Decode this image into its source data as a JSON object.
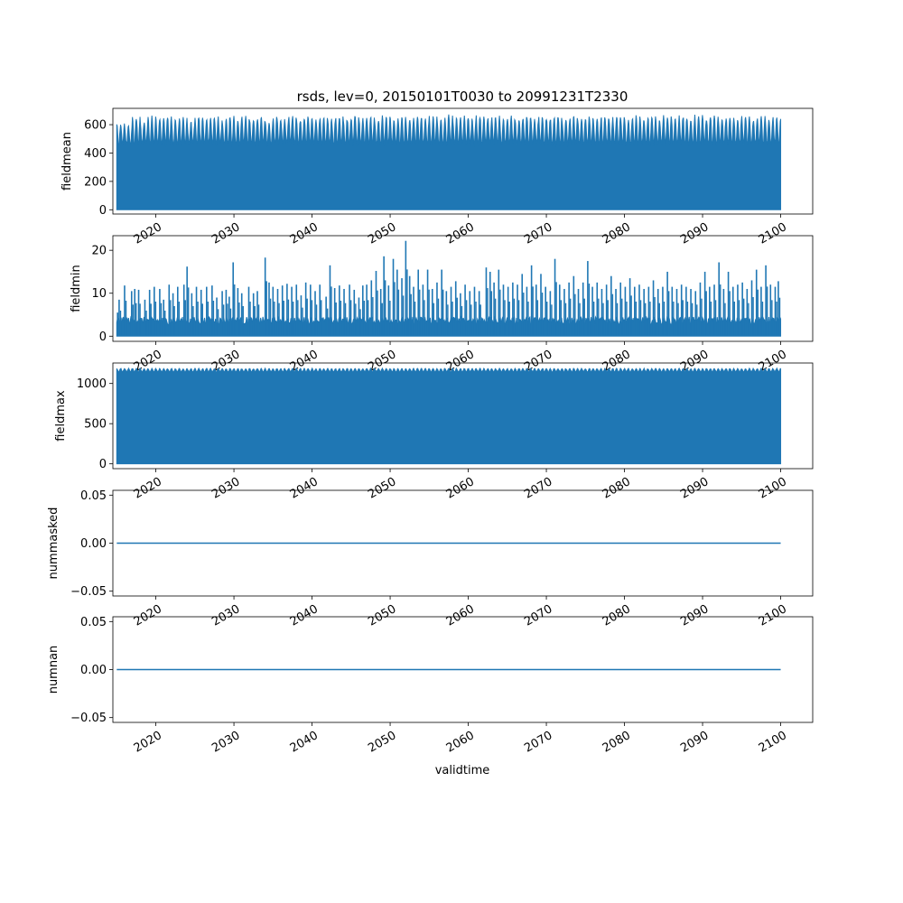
{
  "chart_data": [
    {
      "type": "line",
      "title": "rsds, lev=0, 20150101T0030 to 20991231T2330",
      "xlabel": "",
      "ylabel": "fieldmean",
      "xlim": [
        2014.5,
        2104.1
      ],
      "ylim": [
        -30,
        715
      ],
      "yticks": [
        0,
        200,
        400,
        600
      ],
      "xticks": [
        2020,
        2030,
        2040,
        2050,
        2060,
        2070,
        2080,
        2090,
        2100
      ],
      "series": [
        {
          "style": "dense-oscillation",
          "x_range": [
            2015.0,
            2100.0
          ],
          "cycles_per_year": 1,
          "min": 0,
          "envelope_peaks": [
            618,
            602,
            662,
            628,
            665,
            658,
            668,
            640,
            662,
            625,
            668,
            650,
            668,
            640,
            665,
            645,
            668,
            648,
            668,
            632,
            670,
            650,
            668,
            640,
            670,
            655,
            668,
            642,
            670,
            650,
            672,
            655,
            668,
            645,
            670,
            652,
            668,
            648,
            670,
            655,
            668,
            645,
            672,
            652,
            668,
            648,
            670,
            655,
            668,
            645,
            670,
            652,
            668,
            648,
            670,
            655,
            668,
            645,
            672,
            652,
            668,
            648,
            670,
            655,
            668,
            645,
            670,
            652,
            668,
            648,
            670,
            655,
            668,
            645,
            672,
            652,
            668,
            648,
            670,
            655,
            668,
            645,
            670,
            652,
            668,
            660
          ],
          "trough_max": 470
        }
      ]
    },
    {
      "type": "line",
      "xlabel": "",
      "ylabel": "fieldmin",
      "xlim": [
        2014.5,
        2104.1
      ],
      "ylim": [
        -1.2,
        23.4
      ],
      "yticks": [
        0,
        10,
        20
      ],
      "xticks": [
        2020,
        2030,
        2040,
        2050,
        2060,
        2070,
        2080,
        2090,
        2100
      ],
      "series": [
        {
          "style": "dense-oscillation",
          "x_range": [
            2015.0,
            2100.0
          ],
          "min": 0,
          "base_level": 4.5,
          "spikes": [
            [
              2015.1,
              5.5
            ],
            [
              2015.3,
              8.5
            ],
            [
              2016.0,
              11.8
            ],
            [
              2016.9,
              10.5
            ],
            [
              2017.3,
              11.0
            ],
            [
              2017.8,
              10.8
            ],
            [
              2018.6,
              8.5
            ],
            [
              2019.2,
              10.8
            ],
            [
              2019.8,
              11.5
            ],
            [
              2020.5,
              11.0
            ],
            [
              2021.0,
              8.5
            ],
            [
              2021.7,
              12.0
            ],
            [
              2022.2,
              10.0
            ],
            [
              2022.8,
              11.5
            ],
            [
              2023.6,
              12.0
            ],
            [
              2024.0,
              16.2
            ],
            [
              2024.6,
              10.0
            ],
            [
              2025.2,
              11.5
            ],
            [
              2025.8,
              10.8
            ],
            [
              2026.5,
              11.5
            ],
            [
              2027.2,
              11.8
            ],
            [
              2027.8,
              9.0
            ],
            [
              2028.5,
              10.5
            ],
            [
              2029.0,
              10.8
            ],
            [
              2029.4,
              9.2
            ],
            [
              2029.9,
              17.2
            ],
            [
              2030.5,
              11.2
            ],
            [
              2031.0,
              10.0
            ],
            [
              2031.9,
              11.5
            ],
            [
              2032.5,
              10.0
            ],
            [
              2033.0,
              10.5
            ],
            [
              2034.0,
              18.3
            ],
            [
              2034.5,
              12.5
            ],
            [
              2035.0,
              11.5
            ],
            [
              2035.6,
              11.0
            ],
            [
              2036.2,
              11.8
            ],
            [
              2036.8,
              12.2
            ],
            [
              2037.4,
              11.5
            ],
            [
              2038.0,
              12.0
            ],
            [
              2038.6,
              9.5
            ],
            [
              2039.2,
              12.5
            ],
            [
              2039.8,
              12.0
            ],
            [
              2040.4,
              10.5
            ],
            [
              2041.0,
              12.0
            ],
            [
              2041.8,
              9.2
            ],
            [
              2042.3,
              16.5
            ],
            [
              2042.9,
              11.2
            ],
            [
              2043.5,
              11.8
            ],
            [
              2044.1,
              11.0
            ],
            [
              2044.8,
              12.0
            ],
            [
              2045.4,
              10.8
            ],
            [
              2046.0,
              9.0
            ],
            [
              2046.5,
              11.8
            ],
            [
              2047.0,
              12.0
            ],
            [
              2047.6,
              13.0
            ],
            [
              2048.2,
              15.2
            ],
            [
              2048.8,
              11.0
            ],
            [
              2049.2,
              18.6
            ],
            [
              2049.8,
              11.8
            ],
            [
              2050.4,
              18.0
            ],
            [
              2050.9,
              15.5
            ],
            [
              2051.5,
              13.5
            ],
            [
              2052.0,
              22.2
            ],
            [
              2052.5,
              14.0
            ],
            [
              2053.0,
              11.5
            ],
            [
              2053.6,
              15.5
            ],
            [
              2054.2,
              12.0
            ],
            [
              2054.8,
              15.5
            ],
            [
              2055.4,
              11.0
            ],
            [
              2056.0,
              12.5
            ],
            [
              2056.6,
              15.5
            ],
            [
              2057.2,
              10.5
            ],
            [
              2057.8,
              11.5
            ],
            [
              2058.4,
              12.8
            ],
            [
              2059.0,
              10.0
            ],
            [
              2059.6,
              12.0
            ],
            [
              2060.2,
              10.5
            ],
            [
              2060.8,
              11.5
            ],
            [
              2061.4,
              10.5
            ],
            [
              2062.3,
              16.0
            ],
            [
              2062.8,
              15.0
            ],
            [
              2063.3,
              12.5
            ],
            [
              2063.9,
              15.5
            ],
            [
              2064.5,
              12.0
            ],
            [
              2065.1,
              11.5
            ],
            [
              2065.7,
              12.5
            ],
            [
              2066.3,
              12.0
            ],
            [
              2066.9,
              14.5
            ],
            [
              2067.5,
              11.5
            ],
            [
              2068.1,
              16.5
            ],
            [
              2068.7,
              12.0
            ],
            [
              2069.3,
              14.5
            ],
            [
              2069.9,
              11.5
            ],
            [
              2070.5,
              10.5
            ],
            [
              2071.1,
              18.0
            ],
            [
              2071.7,
              12.0
            ],
            [
              2072.3,
              11.0
            ],
            [
              2072.9,
              12.5
            ],
            [
              2073.5,
              14.0
            ],
            [
              2074.1,
              11.0
            ],
            [
              2074.7,
              12.5
            ],
            [
              2075.3,
              17.5
            ],
            [
              2075.9,
              11.5
            ],
            [
              2076.5,
              12.5
            ],
            [
              2077.1,
              11.0
            ],
            [
              2077.7,
              12.0
            ],
            [
              2078.3,
              14.0
            ],
            [
              2078.9,
              11.0
            ],
            [
              2079.5,
              12.5
            ],
            [
              2080.1,
              11.5
            ],
            [
              2080.7,
              13.5
            ],
            [
              2081.3,
              11.5
            ],
            [
              2081.9,
              12.0
            ],
            [
              2082.5,
              11.0
            ],
            [
              2083.1,
              11.5
            ],
            [
              2083.7,
              13.0
            ],
            [
              2084.3,
              11.0
            ],
            [
              2084.9,
              11.5
            ],
            [
              2085.5,
              15.0
            ],
            [
              2086.1,
              11.5
            ],
            [
              2086.7,
              11.0
            ],
            [
              2087.3,
              12.0
            ],
            [
              2087.9,
              11.5
            ],
            [
              2088.5,
              11.0
            ],
            [
              2089.1,
              10.5
            ],
            [
              2089.7,
              12.5
            ],
            [
              2090.3,
              15.0
            ],
            [
              2090.9,
              11.5
            ],
            [
              2091.5,
              12.0
            ],
            [
              2092.1,
              17.2
            ],
            [
              2092.7,
              11.0
            ],
            [
              2093.3,
              15.0
            ],
            [
              2093.9,
              11.5
            ],
            [
              2094.5,
              12.0
            ],
            [
              2095.1,
              12.5
            ],
            [
              2095.7,
              11.0
            ],
            [
              2096.3,
              13.0
            ],
            [
              2096.9,
              15.5
            ],
            [
              2097.5,
              11.5
            ],
            [
              2098.1,
              16.5
            ],
            [
              2098.7,
              12.0
            ],
            [
              2099.3,
              11.5
            ],
            [
              2099.7,
              12.8
            ]
          ]
        }
      ]
    },
    {
      "type": "line",
      "xlabel": "",
      "ylabel": "fieldmax",
      "xlim": [
        2014.5,
        2104.1
      ],
      "ylim": [
        -60,
        1255
      ],
      "yticks": [
        0,
        500,
        1000
      ],
      "xticks": [
        2020,
        2030,
        2040,
        2050,
        2060,
        2070,
        2080,
        2090,
        2100
      ],
      "series": [
        {
          "style": "dense-oscillation",
          "x_range": [
            2015.0,
            2100.0
          ],
          "min": 0,
          "envelope_max": 1190,
          "envelope_dip": 1150,
          "cycles_per_year": 1
        }
      ]
    },
    {
      "type": "line",
      "xlabel": "",
      "ylabel": "nummasked",
      "xlim": [
        2014.5,
        2104.1
      ],
      "ylim": [
        -0.055,
        0.055
      ],
      "yticks": [
        -0.05,
        0.0,
        0.05
      ],
      "ytick_labels": [
        "−0.05",
        "0.00",
        "0.05"
      ],
      "xticks": [
        2020,
        2030,
        2040,
        2050,
        2060,
        2070,
        2080,
        2090,
        2100
      ],
      "series": [
        {
          "style": "flat",
          "x": [
            2015.0,
            2100.0
          ],
          "y": [
            0.0,
            0.0
          ]
        }
      ]
    },
    {
      "type": "line",
      "xlabel": "validtime",
      "ylabel": "numnan",
      "xlim": [
        2014.5,
        2104.1
      ],
      "ylim": [
        -0.055,
        0.055
      ],
      "yticks": [
        -0.05,
        0.0,
        0.05
      ],
      "ytick_labels": [
        "−0.05",
        "0.00",
        "0.05"
      ],
      "xticks": [
        2020,
        2030,
        2040,
        2050,
        2060,
        2070,
        2080,
        2090,
        2100
      ],
      "series": [
        {
          "style": "flat",
          "x": [
            2015.0,
            2100.0
          ],
          "y": [
            0.0,
            0.0
          ]
        }
      ]
    }
  ],
  "colors": {
    "line": "#1f77b4",
    "axes": "#000000",
    "background": "#ffffff"
  }
}
